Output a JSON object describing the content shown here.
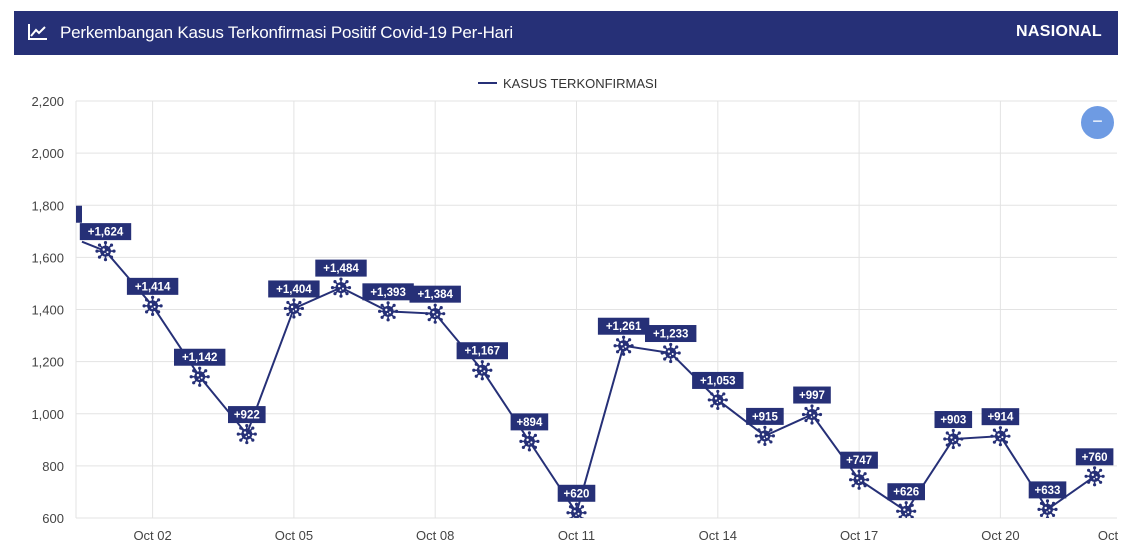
{
  "header": {
    "title": "Perkembangan Kasus Terkonfirmasi Positif Covid-19 Per-Hari",
    "region": "NASIONAL"
  },
  "icons": {
    "title_icon": "line-chart-icon",
    "marker_icon": "virus-icon",
    "zoom_icon": "minus-icon"
  },
  "colors": {
    "header_bg": "#263077",
    "series": "#263077",
    "label_bg": "#263077",
    "zoom_button": "#6e9be3"
  },
  "zoom_label": "−",
  "chart_data": {
    "type": "line",
    "legend": "top-center",
    "grid": true,
    "series": [
      {
        "name": "KASUS TERKONFIRMASI",
        "x": [
          "Oct 01",
          "Oct 02",
          "Oct 03",
          "Oct 04",
          "Oct 05",
          "Oct 06",
          "Oct 07",
          "Oct 08",
          "Oct 09",
          "Oct 10",
          "Oct 11",
          "Oct 12",
          "Oct 13",
          "Oct 14",
          "Oct 15",
          "Oct 16",
          "Oct 17",
          "Oct 18",
          "Oct 19",
          "Oct 20",
          "Oct 21",
          "Oct 22"
        ],
        "values": [
          1624,
          1414,
          1142,
          922,
          1404,
          1484,
          1393,
          1384,
          1167,
          894,
          620,
          1261,
          1233,
          1053,
          915,
          997,
          747,
          626,
          903,
          914,
          633,
          760
        ],
        "labels": [
          "+1,624",
          "+1,414",
          "+1,142",
          "+922",
          "+1,404",
          "+1,484",
          "+1,393",
          "+1,384",
          "+1,167",
          "+894",
          "+620",
          "+1,261",
          "+1,233",
          "+1,053",
          "+915",
          "+997",
          "+747",
          "+626",
          "+903",
          "+914",
          "+633",
          "+760"
        ]
      }
    ],
    "ylim": [
      600,
      2200
    ],
    "yticks": [
      600,
      800,
      1000,
      1200,
      1400,
      1600,
      1800,
      2000,
      2200
    ],
    "ytick_labels": [
      "600",
      "800",
      "1,000",
      "1,200",
      "1,400",
      "1,600",
      "1,800",
      "2,000",
      "2,200"
    ],
    "xtick_labels": [
      {
        "label": "Oct 02",
        "index": 1
      },
      {
        "label": "Oct 05",
        "index": 4
      },
      {
        "label": "Oct 08",
        "index": 7
      },
      {
        "label": "Oct 11",
        "index": 10
      },
      {
        "label": "Oct 14",
        "index": 13
      },
      {
        "label": "Oct 17",
        "index": 16
      },
      {
        "label": "Oct 20",
        "index": 19
      },
      {
        "label": "Oct",
        "index": 22
      }
    ],
    "offscreen_left_value": 1660,
    "offscreen_left_x": -0.5
  }
}
